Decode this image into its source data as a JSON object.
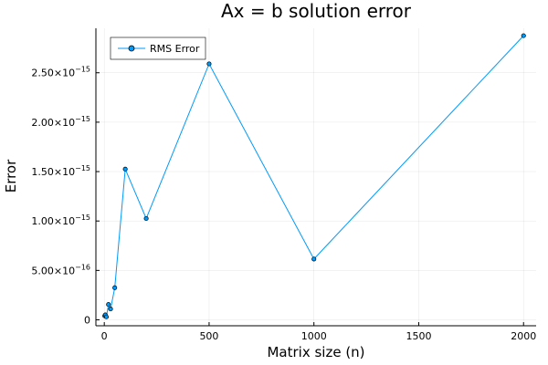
{
  "chart_data": {
    "type": "line",
    "title": "Ax = b solution error",
    "xlabel": "Matrix size (n)",
    "ylabel": "Error",
    "xlim": [
      -40,
      2060
    ],
    "ylim": [
      -6e-17,
      2.95e-15
    ],
    "grid": true,
    "legend_position": "top-left",
    "series": [
      {
        "name": "RMS Error",
        "color": "#009AFA",
        "x": [
          2,
          5,
          10,
          20,
          30,
          50,
          100,
          200,
          500,
          1000,
          2000
        ],
        "y": [
          4e-17,
          5e-17,
          3e-17,
          1.55e-16,
          1.1e-16,
          3.25e-16,
          1.525e-15,
          1.025e-15,
          2.59e-15,
          6.15e-16,
          2.875e-15
        ]
      }
    ],
    "x_ticks": [
      {
        "value": 0,
        "label": "0"
      },
      {
        "value": 500,
        "label": "500"
      },
      {
        "value": 1000,
        "label": "1000"
      },
      {
        "value": 1500,
        "label": "1500"
      },
      {
        "value": 2000,
        "label": "2000"
      }
    ],
    "y_ticks": [
      {
        "value": 0,
        "base": "0",
        "exp": ""
      },
      {
        "value": 5e-16,
        "base": "5.00×10",
        "exp": "−16"
      },
      {
        "value": 1e-15,
        "base": "1.00×10",
        "exp": "−15"
      },
      {
        "value": 1.5e-15,
        "base": "1.50×10",
        "exp": "−15"
      },
      {
        "value": 2e-15,
        "base": "2.00×10",
        "exp": "−15"
      },
      {
        "value": 2.5e-15,
        "base": "2.50×10",
        "exp": "−15"
      }
    ]
  }
}
